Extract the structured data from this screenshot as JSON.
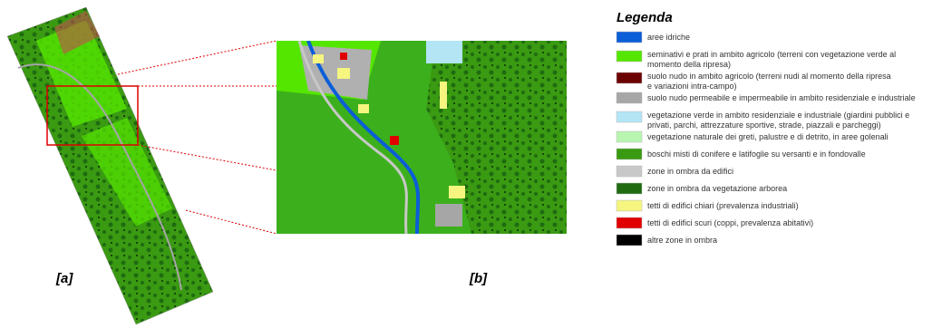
{
  "legend": {
    "title": "Legenda",
    "items": [
      {
        "lines": [
          "aree idriche"
        ],
        "color": "#0b5ed7"
      },
      {
        "lines": [
          "seminativi e prati in ambito agricolo (terreni con vegetazione verde al",
          "momento della ripresa)"
        ],
        "color": "#55e600"
      },
      {
        "lines": [
          "suolo nudo in ambito agricolo (terreni nudi al momento della ripresa",
          "e variazioni intra-campo)"
        ],
        "color": "#6b0000"
      },
      {
        "lines": [
          "suolo nudo permeabile e impermeabile in ambito residenziale e industriale"
        ],
        "color": "#a6a6a6"
      },
      {
        "lines": [
          "vegetazione verde in ambito residenziale e industriale (giardini pubblici e",
          "privati, parchi, attrezzature sportive, strade, piazzali e parcheggi)"
        ],
        "color": "#b3e5f5"
      },
      {
        "lines": [
          "vegetazione naturale dei greti, palustre e di detrito, in aree golenali"
        ],
        "color": "#b8f5b0"
      },
      {
        "lines": [
          "boschi misti di conifere e latifoglie su versanti e in fondovalle"
        ],
        "color": "#3a9a12"
      },
      {
        "lines": [
          "zone in ombra da edifici"
        ],
        "color": "#c8c8c8"
      },
      {
        "lines": [
          "zone in ombra da vegetazione arborea"
        ],
        "color": "#1e6b10"
      },
      {
        "lines": [
          "tetti di edifici chiari (prevalenza industriali)"
        ],
        "color": "#f5f580"
      },
      {
        "lines": [
          "tetti di edifici scuri (coppi, prevalenza abitativi)"
        ],
        "color": "#e00000"
      },
      {
        "lines": [
          "altre zone in ombra"
        ],
        "color": "#000000"
      }
    ]
  },
  "captions": {
    "a": "[a]",
    "b": "[b]"
  }
}
